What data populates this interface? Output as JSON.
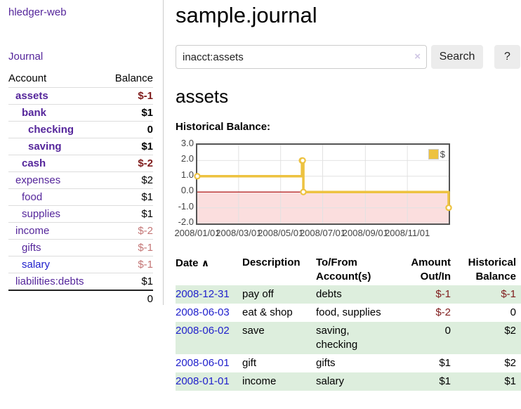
{
  "colors": {
    "link_purple": "#55269b",
    "link_blue": "#2121cc",
    "negative_strong": "#7f1c1c",
    "negative_light": "#c47676",
    "row_stripe_green": "#ddeedd",
    "chart_line_gold": "#edc240",
    "chart_negative_fill": "#fbdede",
    "chart_zero_line": "#a80000",
    "chart_grid": "#e2e2e2"
  },
  "sidebar": {
    "app_title": "hledger-web",
    "journal_label": "Journal",
    "accounts_table": {
      "headers": {
        "account": "Account",
        "balance": "Balance"
      },
      "rows": [
        {
          "name": "assets",
          "depth": 1,
          "bold": true,
          "balance": "$-1",
          "balance_style": "neg-strong"
        },
        {
          "name": "bank",
          "depth": 2,
          "bold": true,
          "balance": "$1",
          "balance_style": "pos-strong"
        },
        {
          "name": "checking",
          "depth": 3,
          "bold": true,
          "balance": "0",
          "balance_style": "pos-strong"
        },
        {
          "name": "saving",
          "depth": 3,
          "bold": true,
          "balance": "$1",
          "balance_style": "pos-strong"
        },
        {
          "name": "cash",
          "depth": 2,
          "bold": true,
          "balance": "$-2",
          "balance_style": "neg-strong"
        },
        {
          "name": "expenses",
          "depth": 1,
          "bold": false,
          "balance": "$2",
          "balance_style": "pos"
        },
        {
          "name": "food",
          "depth": 2,
          "bold": false,
          "balance": "$1",
          "balance_style": "pos"
        },
        {
          "name": "supplies",
          "depth": 2,
          "bold": false,
          "balance": "$1",
          "balance_style": "pos"
        },
        {
          "name": "income",
          "depth": 1,
          "bold": false,
          "balance": "$-2",
          "balance_style": "neg-light"
        },
        {
          "name": "gifts",
          "depth": 2,
          "bold": false,
          "balance": "$-1",
          "balance_style": "neg-light"
        },
        {
          "name": "salary",
          "depth": 2,
          "bold": false,
          "balance": "$-1",
          "balance_style": "neg-light",
          "link_color": "blue"
        },
        {
          "name": "liabilities:debts",
          "depth": 1,
          "bold": false,
          "balance": "$1",
          "balance_style": "pos"
        }
      ],
      "total": "0"
    }
  },
  "main": {
    "title": "sample.journal",
    "search": {
      "value": "inacct:assets",
      "clear_icon": "×",
      "button_label": "Search",
      "help_label": "?"
    },
    "account_heading": "assets",
    "chart_heading": "Historical Balance:"
  },
  "chart_data": {
    "type": "line",
    "line_style": "steps",
    "series": [
      {
        "name": "$",
        "points": [
          {
            "date": "2008-01-01",
            "value": 1
          },
          {
            "date": "2008-06-01",
            "value": 2
          },
          {
            "date": "2008-06-02",
            "value": 2
          },
          {
            "date": "2008-06-03",
            "value": 0
          },
          {
            "date": "2008-12-31",
            "value": -1
          }
        ]
      }
    ],
    "ylim": [
      -2,
      3
    ],
    "y_ticks": [
      "3.0",
      "2.0",
      "1.0",
      "0.0",
      "-1.0",
      "-2.0"
    ],
    "x_range": [
      "2008-01-01",
      "2008-12-31"
    ],
    "x_tick_labels": [
      "2008/01/01",
      "2008/03/01",
      "2008/05/01",
      "2008/07/01",
      "2008/09/01",
      "2008/11/01"
    ],
    "grid": true,
    "negative_region_shaded": true,
    "legend": {
      "label": "$",
      "position": "top-right"
    }
  },
  "register_table": {
    "headers": {
      "date": "Date",
      "sort_icon": "∧",
      "description": "Description",
      "tofrom_line1": "To/From",
      "tofrom_line2": "Account(s)",
      "amount_line1": "Amount",
      "amount_line2": "Out/In",
      "balance_line1": "Historical",
      "balance_line2": "Balance"
    },
    "rows": [
      {
        "date": "2008-12-31",
        "description": "pay off",
        "accounts": "debts",
        "amount": "$-1",
        "amount_neg": true,
        "balance": "$-1",
        "balance_neg": true,
        "shade": true
      },
      {
        "date": "2008-06-03",
        "description": "eat & shop",
        "accounts": "food, supplies",
        "amount": "$-2",
        "amount_neg": true,
        "balance": "0",
        "balance_neg": false,
        "shade": false
      },
      {
        "date": "2008-06-02",
        "description": "save",
        "accounts": "saving,\nchecking",
        "amount": "0",
        "amount_neg": false,
        "balance": "$2",
        "balance_neg": false,
        "shade": true
      },
      {
        "date": "2008-06-01",
        "description": "gift",
        "accounts": "gifts",
        "amount": "$1",
        "amount_neg": false,
        "balance": "$2",
        "balance_neg": false,
        "shade": false
      },
      {
        "date": "2008-01-01",
        "description": "income",
        "accounts": "salary",
        "amount": "$1",
        "amount_neg": false,
        "balance": "$1",
        "balance_neg": false,
        "shade": true
      }
    ]
  }
}
